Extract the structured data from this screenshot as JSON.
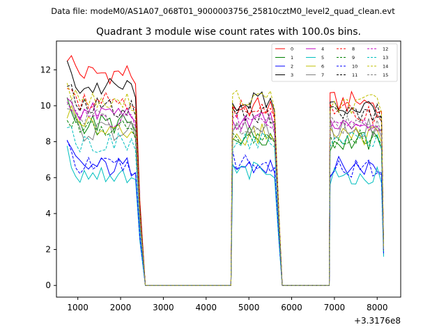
{
  "chart_data": {
    "type": "line",
    "suptitle": "Data file: modeM0/AS1A07_068T01_9000003756_25810cztM0_level2_quad_clean.evt",
    "title": "Quadrant 3 module wise count rates with 100.0s bins.",
    "xlabel": "",
    "ylabel": "",
    "offset_text": "+3.3176e8",
    "xlim": [
      500,
      8550
    ],
    "ylim": [
      -0.65,
      13.6
    ],
    "xticks": [
      1000,
      2000,
      3000,
      4000,
      5000,
      6000,
      7000,
      8000
    ],
    "xtick_labels": [
      "1000",
      "2000",
      "3000",
      "4000",
      "5000",
      "6000",
      "7000",
      "8000"
    ],
    "yticks": [
      0,
      2,
      4,
      6,
      8,
      10,
      12
    ],
    "ytick_labels": [
      "0",
      "2",
      "4",
      "6",
      "8",
      "10",
      "12"
    ],
    "legend_position": "top-right",
    "segments": [
      {
        "start": 750,
        "end": 2350,
        "drop": [
          2450,
          2580
        ]
      },
      {
        "start": 4620,
        "end": 5600,
        "drop": [
          5700,
          5780
        ]
      },
      {
        "start": 6900,
        "end": 8100,
        "drop": [
          8150,
          8150
        ]
      }
    ],
    "gaps": [
      [
        2580,
        4580
      ],
      [
        5780,
        6880
      ]
    ],
    "series": [
      {
        "name": "0",
        "color": "#ff0000",
        "dash": "solid",
        "levels": [
          11.8,
          9.9,
          10.2
        ],
        "end_level": 1.9
      },
      {
        "name": "1",
        "color": "#008000",
        "dash": "solid",
        "levels": [
          9.0,
          8.4,
          8.0
        ],
        "end_level": 2.0
      },
      {
        "name": "2",
        "color": "#0000ff",
        "dash": "solid",
        "levels": [
          6.6,
          6.6,
          6.6
        ],
        "end_level": 1.7
      },
      {
        "name": "3",
        "color": "#000000",
        "dash": "solid",
        "levels": [
          11.0,
          10.2,
          9.9
        ],
        "end_level": 2.2
      },
      {
        "name": "4",
        "color": "#bf00bf",
        "dash": "solid",
        "levels": [
          9.6,
          9.2,
          9.1
        ],
        "end_level": 2.1
      },
      {
        "name": "5",
        "color": "#00bfbf",
        "dash": "solid",
        "levels": [
          6.2,
          6.3,
          6.0
        ],
        "end_level": 1.6
      },
      {
        "name": "6",
        "color": "#bfbf00",
        "dash": "solid",
        "levels": [
          8.8,
          8.4,
          8.4
        ],
        "end_level": 2.0
      },
      {
        "name": "7",
        "color": "#808080",
        "dash": "solid",
        "levels": [
          8.6,
          8.6,
          8.7
        ],
        "end_level": 2.0
      },
      {
        "name": "8",
        "color": "#ff0000",
        "dash": "dashed",
        "levels": [
          10.4,
          9.8,
          9.6
        ],
        "end_level": 2.1
      },
      {
        "name": "9",
        "color": "#008000",
        "dash": "dashed",
        "levels": [
          8.6,
          8.4,
          8.2
        ],
        "end_level": 1.9
      },
      {
        "name": "10",
        "color": "#0000ff",
        "dash": "dashed",
        "levels": [
          6.6,
          6.9,
          6.5
        ],
        "end_level": 1.8
      },
      {
        "name": "11",
        "color": "#000000",
        "dash": "dashed",
        "levels": [
          9.9,
          9.6,
          9.6
        ],
        "end_level": 2.1
      },
      {
        "name": "12",
        "color": "#bf00bf",
        "dash": "dashed",
        "levels": [
          9.3,
          9.1,
          9.0
        ],
        "end_level": 2.0
      },
      {
        "name": "13",
        "color": "#00bfbf",
        "dash": "dashed",
        "levels": [
          7.9,
          8.1,
          8.0
        ],
        "end_level": 1.9
      },
      {
        "name": "14",
        "color": "#bfbf00",
        "dash": "dashed",
        "levels": [
          10.2,
          10.3,
          10.1
        ],
        "end_level": 2.2
      },
      {
        "name": "15",
        "color": "#808080",
        "dash": "dashed",
        "levels": [
          9.2,
          8.8,
          8.9
        ],
        "end_level": 2.0
      }
    ]
  }
}
